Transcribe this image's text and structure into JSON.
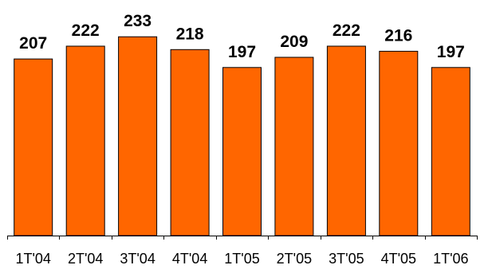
{
  "chart_data": {
    "type": "bar",
    "categories": [
      "1T'04",
      "2T'04",
      "3T'04",
      "4T'04",
      "1T'05",
      "2T'05",
      "3T'05",
      "4T'05",
      "1T'06"
    ],
    "values": [
      207,
      222,
      233,
      218,
      197,
      209,
      222,
      216,
      197
    ],
    "data_labels": [
      "207",
      "222",
      "233",
      "218",
      "197",
      "209",
      "222",
      "216",
      "197"
    ],
    "title": "",
    "xlabel": "",
    "ylabel": "",
    "ylim": [
      0,
      250
    ],
    "grid": false,
    "legend": "none",
    "bar_color": "#FF6600",
    "bar_edge_color": "#000000"
  }
}
